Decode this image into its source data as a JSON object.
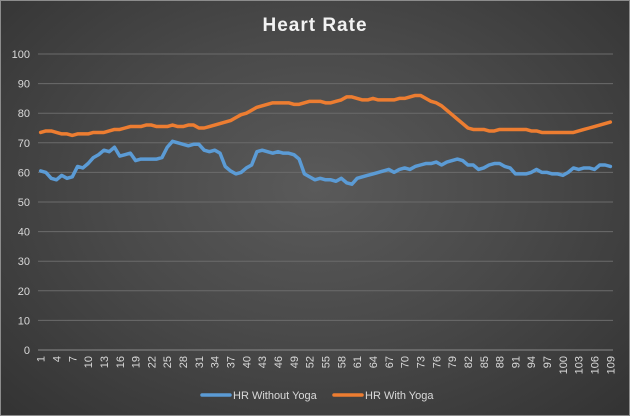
{
  "chart_data": {
    "type": "line",
    "title": "Heart Rate",
    "xlabel": "",
    "ylabel": "",
    "ylim": [
      0,
      100
    ],
    "yticks": [
      0,
      10,
      20,
      30,
      40,
      50,
      60,
      70,
      80,
      90,
      100
    ],
    "x_start": 1,
    "x_end": 109,
    "x_tick_labels": [
      "1",
      "4",
      "7",
      "10",
      "13",
      "16",
      "19",
      "22",
      "25",
      "28",
      "31",
      "34",
      "37",
      "40",
      "43",
      "46",
      "49",
      "52",
      "55",
      "58",
      "61",
      "64",
      "67",
      "70",
      "73",
      "76",
      "79",
      "82",
      "85",
      "88",
      "91",
      "94",
      "97",
      "100",
      "103",
      "106",
      "109"
    ],
    "grid": true,
    "legend_position": "bottom",
    "series": [
      {
        "name": "HR Without Yoga",
        "color": "#5b9bd5",
        "values": [
          60.5,
          60,
          58,
          57.5,
          59,
          58,
          58.5,
          62,
          61.5,
          63,
          65,
          66,
          67.5,
          67,
          68.5,
          65.5,
          66,
          66.5,
          64,
          64.5,
          64.5,
          64.5,
          64.5,
          65,
          68.5,
          70.5,
          70,
          69.5,
          69,
          69.5,
          69.5,
          67.5,
          67,
          67.5,
          66.5,
          62,
          60.5,
          59.5,
          60,
          61.5,
          62.5,
          67,
          67.5,
          67,
          66.5,
          67,
          66.5,
          66.5,
          66,
          64.5,
          59.5,
          58.5,
          57.5,
          58,
          57.5,
          57.5,
          57,
          58,
          56.5,
          56,
          58,
          58.5,
          59,
          59.5,
          60,
          60.5,
          61,
          60,
          61,
          61.5,
          61,
          62,
          62.5,
          63,
          63,
          63.5,
          62.5,
          63.5,
          64,
          64.5,
          64,
          62.5,
          62.5,
          61,
          61.5,
          62.5,
          63,
          63,
          62,
          61.5,
          59.5,
          59.5,
          59.5,
          60,
          61,
          60,
          60,
          59.5,
          59.5,
          59,
          60,
          61.5,
          61,
          61.5,
          61.5,
          61,
          62.5,
          62.5,
          62
        ]
      },
      {
        "name": "HR With Yoga",
        "color": "#ed7d31",
        "values": [
          73.5,
          74,
          74,
          73.5,
          73,
          73,
          72.5,
          73,
          73,
          73,
          73.5,
          73.5,
          73.5,
          74,
          74.5,
          74.5,
          75,
          75.5,
          75.5,
          75.5,
          76,
          76,
          75.5,
          75.5,
          75.5,
          76,
          75.5,
          75.5,
          76,
          76,
          75,
          75,
          75.5,
          76,
          76.5,
          77,
          77.5,
          78.5,
          79.5,
          80,
          81,
          82,
          82.5,
          83,
          83.5,
          83.5,
          83.5,
          83.5,
          83,
          83,
          83.5,
          84,
          84,
          84,
          83.5,
          83.5,
          84,
          84.5,
          85.5,
          85.5,
          85,
          84.5,
          84.5,
          85,
          84.5,
          84.5,
          84.5,
          84.5,
          85,
          85,
          85.5,
          86,
          86,
          85,
          84,
          83.5,
          82.5,
          81,
          79.5,
          78,
          76.5,
          75,
          74.5,
          74.5,
          74.5,
          74,
          74,
          74.5,
          74.5,
          74.5,
          74.5,
          74.5,
          74.5,
          74,
          74,
          73.5,
          73.5,
          73.5,
          73.5,
          73.5,
          73.5,
          73.5,
          74,
          74.5,
          75,
          75.5,
          76,
          76.5,
          77
        ]
      }
    ]
  }
}
